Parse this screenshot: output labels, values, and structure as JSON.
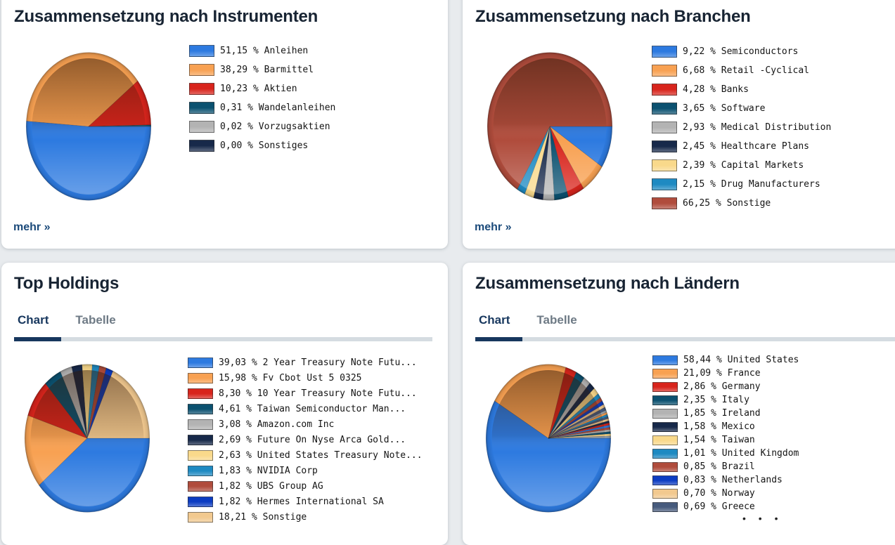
{
  "theme": {
    "page_background": "#e8ebee",
    "card_background": "#ffffff",
    "title_color": "#182433",
    "tab_active_color": "#17375e",
    "tab_inactive_color": "#6e7a85",
    "tab_track_color": "#d5dce1",
    "link_color": "#1b4a7a",
    "legend_text_color": "#141414"
  },
  "cards": [
    {
      "title": "Zusammensetzung nach Instrumenten",
      "more_label": "mehr »"
    },
    {
      "title": "Zusammensetzung nach Branchen",
      "more_label": "mehr »"
    },
    {
      "title": "Top Holdings",
      "tabs": [
        "Chart",
        "Tabelle"
      ],
      "active_tab": "Chart"
    },
    {
      "title": "Zusammensetzung nach Ländern",
      "tabs": [
        "Chart",
        "Tabelle"
      ],
      "active_tab": "Chart",
      "more_indicator": "• • •"
    }
  ],
  "chart_data": [
    {
      "type": "pie",
      "title": "Zusammensetzung nach Instrumenten",
      "legend_position": "right",
      "slices": [
        {
          "display": "51,15",
          "value": 51.15,
          "label": "Anleihen",
          "color": "#2d7ae0"
        },
        {
          "display": "38,29",
          "value": 38.29,
          "label": "Barmittel",
          "color": "#f8a152"
        },
        {
          "display": "10,23",
          "value": 10.23,
          "label": "Aktien",
          "color": "#d8241c"
        },
        {
          "display": "0,31",
          "value": 0.31,
          "label": "Wandelanleihen",
          "color": "#0b5170"
        },
        {
          "display": "0,02",
          "value": 0.02,
          "label": "Vorzugsaktien",
          "color": "#b3b3b3"
        },
        {
          "display": "0,00",
          "value": 0.0,
          "label": "Sonstiges",
          "color": "#17294a"
        }
      ]
    },
    {
      "type": "pie",
      "title": "Zusammensetzung nach Branchen",
      "legend_position": "right",
      "slices": [
        {
          "display": "9,22",
          "value": 9.22,
          "label": "Semiconductors",
          "color": "#2d7ae0"
        },
        {
          "display": "6,68",
          "value": 6.68,
          "label": "Retail -Cyclical",
          "color": "#f8a152"
        },
        {
          "display": "4,28",
          "value": 4.28,
          "label": "Banks",
          "color": "#d8241c"
        },
        {
          "display": "3,65",
          "value": 3.65,
          "label": "Software",
          "color": "#0b5170"
        },
        {
          "display": "2,93",
          "value": 2.93,
          "label": "Medical Distribution",
          "color": "#b3b3b3"
        },
        {
          "display": "2,45",
          "value": 2.45,
          "label": "Healthcare Plans",
          "color": "#17294a"
        },
        {
          "display": "2,39",
          "value": 2.39,
          "label": "Capital Markets",
          "color": "#f9d98b"
        },
        {
          "display": "2,15",
          "value": 2.15,
          "label": "Drug Manufacturers",
          "color": "#1e8ac2"
        },
        {
          "display": "66,25",
          "value": 66.25,
          "label": "Sonstige",
          "color": "#b04c3c"
        }
      ]
    },
    {
      "type": "pie",
      "title": "Top Holdings",
      "legend_position": "right",
      "slices": [
        {
          "display": "39,03",
          "value": 39.03,
          "label": "2 Year Treasury Note Futu...",
          "color": "#2d7ae0"
        },
        {
          "display": "15,98",
          "value": 15.98,
          "label": "Fv Cbot Ust 5 0325",
          "color": "#f8a152"
        },
        {
          "display": "8,30",
          "value": 8.3,
          "label": "10 Year Treasury Note Futu...",
          "color": "#d8241c"
        },
        {
          "display": "4,61",
          "value": 4.61,
          "label": "Taiwan Semiconductor Man...",
          "color": "#0b5170"
        },
        {
          "display": "3,08",
          "value": 3.08,
          "label": "Amazon.com Inc",
          "color": "#b3b3b3"
        },
        {
          "display": "2,69",
          "value": 2.69,
          "label": "Future On Nyse Arca Gold...",
          "color": "#17294a"
        },
        {
          "display": "2,63",
          "value": 2.63,
          "label": "United States Treasury Note...",
          "color": "#f9d98b"
        },
        {
          "display": "1,83",
          "value": 1.83,
          "label": "NVIDIA Corp",
          "color": "#1e8ac2"
        },
        {
          "display": "1,82",
          "value": 1.82,
          "label": "UBS Group AG",
          "color": "#b04c3c"
        },
        {
          "display": "1,82",
          "value": 1.82,
          "label": "Hermes International SA",
          "color": "#0c3cc2"
        },
        {
          "display": "18,21",
          "value": 18.21,
          "label": "Sonstige",
          "color": "#f2c98f"
        }
      ]
    },
    {
      "type": "pie",
      "title": "Zusammensetzung nach Ländern",
      "legend_position": "right",
      "unlabeled_remainder": 6.21,
      "slices": [
        {
          "display": "58,44",
          "value": 58.44,
          "label": "United States",
          "color": "#2d7ae0"
        },
        {
          "display": "21,09",
          "value": 21.09,
          "label": "France",
          "color": "#f8a152"
        },
        {
          "display": "2,86",
          "value": 2.86,
          "label": "Germany",
          "color": "#d8241c"
        },
        {
          "display": "2,35",
          "value": 2.35,
          "label": "Italy",
          "color": "#0b5170"
        },
        {
          "display": "1,85",
          "value": 1.85,
          "label": "Ireland",
          "color": "#b3b3b3"
        },
        {
          "display": "1,58",
          "value": 1.58,
          "label": "Mexico",
          "color": "#17294a"
        },
        {
          "display": "1,54",
          "value": 1.54,
          "label": "Taiwan",
          "color": "#f9d98b"
        },
        {
          "display": "1,01",
          "value": 1.01,
          "label": "United Kingdom",
          "color": "#1e8ac2"
        },
        {
          "display": "0,85",
          "value": 0.85,
          "label": "Brazil",
          "color": "#b04c3c"
        },
        {
          "display": "0,83",
          "value": 0.83,
          "label": "Netherlands",
          "color": "#0c3cc2"
        },
        {
          "display": "0,70",
          "value": 0.7,
          "label": "Norway",
          "color": "#f2c98f"
        },
        {
          "display": "0,69",
          "value": 0.69,
          "label": "Greece",
          "color": "#475b7d"
        }
      ]
    }
  ]
}
